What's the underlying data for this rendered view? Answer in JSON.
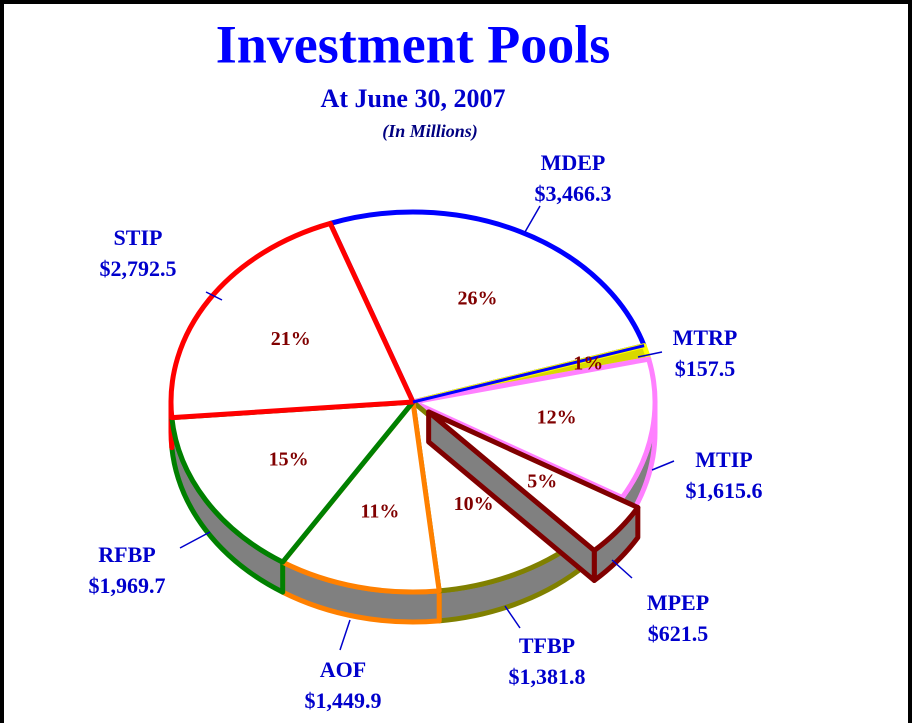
{
  "chart_data": {
    "type": "pie3d",
    "title": "Investment Pools",
    "subtitle": "At June 30, 2007",
    "unit_note": "(In Millions)",
    "categories": [
      "MDEP",
      "MTRP",
      "MTIP",
      "MPEP",
      "TFBP",
      "AOF",
      "RFBP",
      "STIP"
    ],
    "values": [
      3466.3,
      157.5,
      1615.6,
      621.5,
      1381.8,
      1449.9,
      1969.7,
      2792.5
    ],
    "value_labels": [
      "$3,466.3",
      "$157.5",
      "$1,615.6",
      "$621.5",
      "$1,381.8",
      "$1,449.9",
      "$1,969.7",
      "$2,792.5"
    ],
    "percent_labels": [
      "26%",
      "1%",
      "12%",
      "5%",
      "10%",
      "11%",
      "15%",
      "21%"
    ],
    "colors": [
      "#0000ff",
      "#d8d800",
      "#ff80ff",
      "#800000",
      "#808000",
      "#ff8000",
      "#008000",
      "#ff0000"
    ],
    "exploded": "MPEP"
  }
}
